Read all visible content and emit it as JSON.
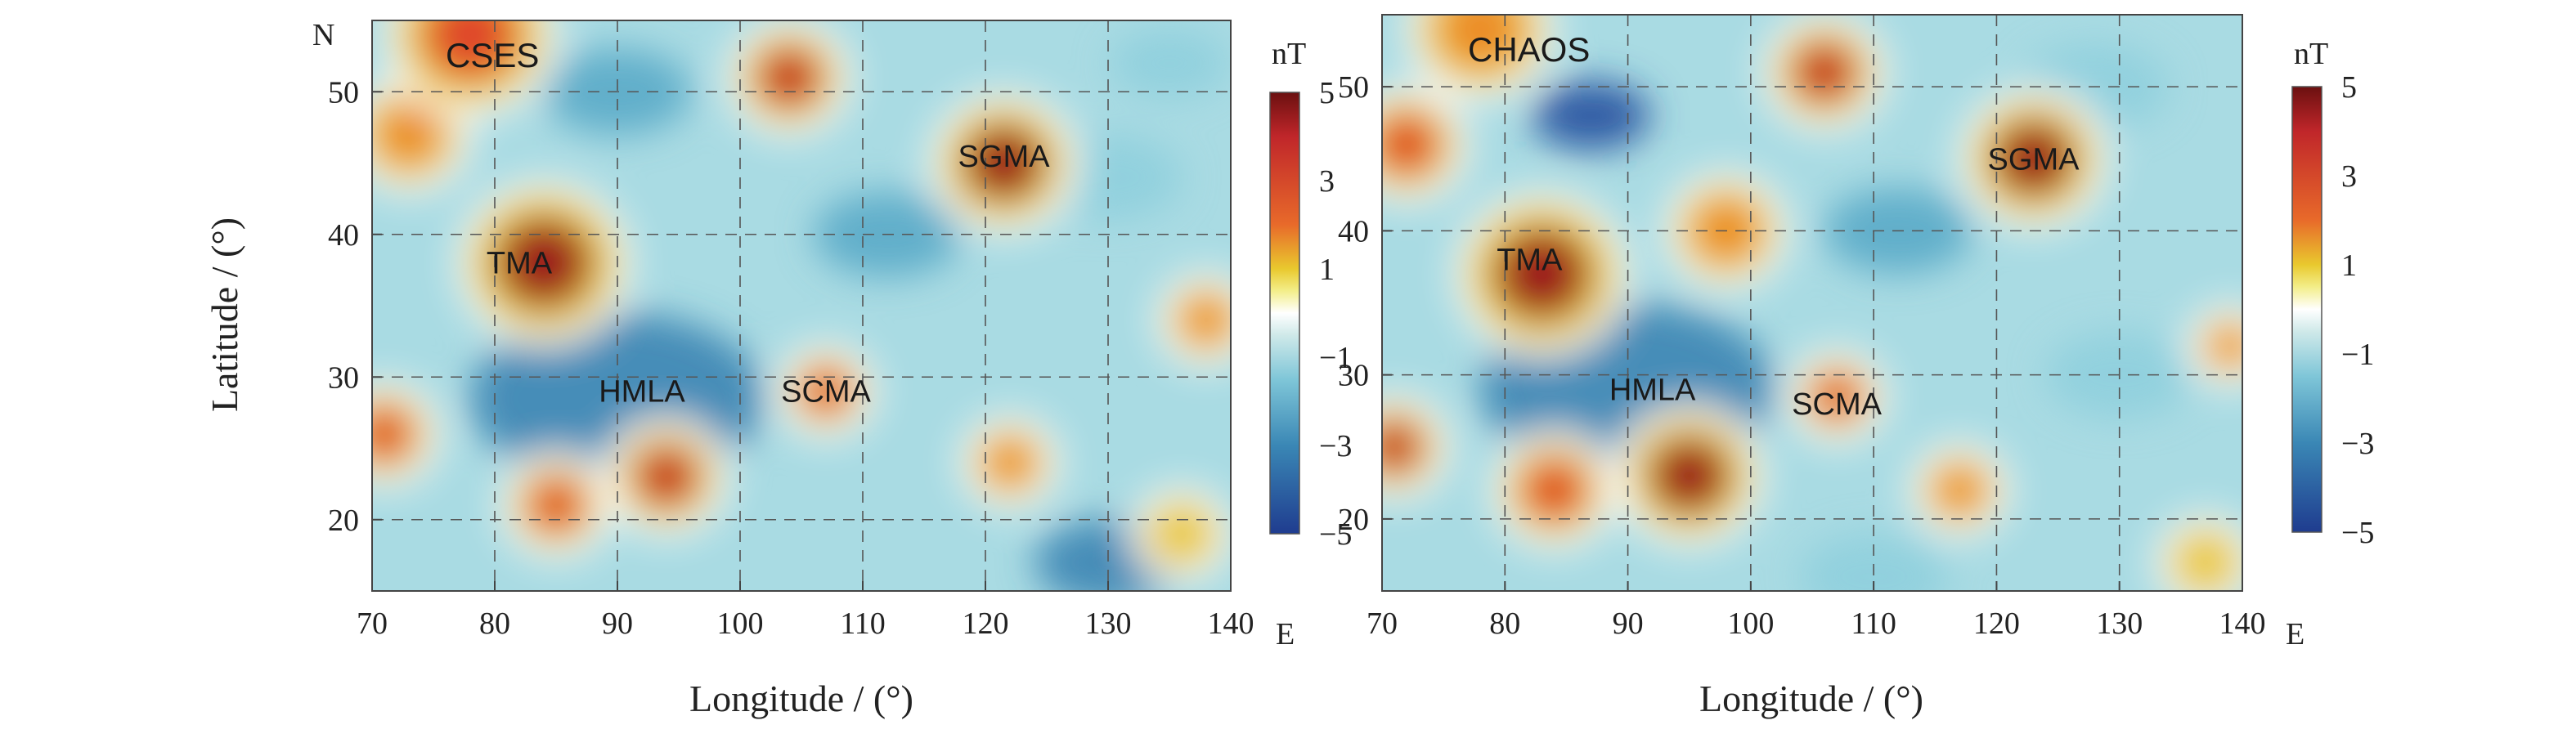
{
  "chart_data": [
    {
      "type": "heatmap",
      "panel_label": "CSES",
      "xlabel": "Longitude / (°)",
      "ylabel": "Latitude / (°)",
      "x_unit_label": "E",
      "y_unit_label": "N",
      "xlim": [
        70,
        140
      ],
      "ylim": [
        15,
        55
      ],
      "xticks": [
        70,
        80,
        90,
        100,
        110,
        120,
        130,
        140
      ],
      "yticks": [
        20,
        30,
        40,
        50
      ],
      "grid": true,
      "colorbar": {
        "unit": "nT",
        "range": [
          -5,
          5
        ],
        "ticks": [
          5,
          3,
          1,
          -1,
          -3,
          -5
        ],
        "tick_labels": [
          "5",
          "3",
          "1",
          "−1",
          "−3",
          "−5"
        ]
      },
      "anomalies": [
        {
          "label": "TMA",
          "lon": 82,
          "lat": 38,
          "value": 4.5
        },
        {
          "label": "SGMA",
          "lon": 121.5,
          "lat": 45.5,
          "value": 5
        },
        {
          "label": "SCMA",
          "lon": 107,
          "lat": 29,
          "value": 3
        },
        {
          "label": "HMLA",
          "lon": 92,
          "lat": 29,
          "value": -3
        }
      ],
      "blobs": [
        {
          "lon": 78,
          "lat": 54,
          "value": 3.5,
          "r": 6
        },
        {
          "lon": 73,
          "lat": 47,
          "value": 2.5,
          "r": 4
        },
        {
          "lon": 104,
          "lat": 51,
          "value": 4.5,
          "r": 4
        },
        {
          "lon": 121.5,
          "lat": 45,
          "value": 5.5,
          "r": 5
        },
        {
          "lon": 84,
          "lat": 38,
          "value": 5.0,
          "r": 6
        },
        {
          "lon": 107,
          "lat": 29,
          "value": 3.2,
          "r": 3
        },
        {
          "lon": 94,
          "lat": 23,
          "value": 4.5,
          "r": 4
        },
        {
          "lon": 85,
          "lat": 21,
          "value": 3.5,
          "r": 3.5
        },
        {
          "lon": 71,
          "lat": 26,
          "value": 3.0,
          "r": 3.5
        },
        {
          "lon": 122,
          "lat": 24,
          "value": 2.5,
          "r": 3
        },
        {
          "lon": 138,
          "lat": 34,
          "value": 2.5,
          "r": 3
        },
        {
          "lon": 136,
          "lat": 19,
          "value": 1.5,
          "r": 3
        },
        {
          "lon": 90,
          "lat": 28.5,
          "value": -3.5,
          "r": 10
        },
        {
          "lon": 90,
          "lat": 50,
          "value": -2.0,
          "r": 5
        },
        {
          "lon": 130,
          "lat": 17,
          "value": -3.0,
          "r": 5
        },
        {
          "lon": 112,
          "lat": 40,
          "value": -2.5,
          "r": 5
        },
        {
          "lon": 130,
          "lat": 44,
          "value": -1.5,
          "r": 5
        },
        {
          "lon": 135,
          "lat": 52,
          "value": -1.5,
          "r": 4
        }
      ]
    },
    {
      "type": "heatmap",
      "panel_label": "CHAOS",
      "xlabel": "Longitude / (°)",
      "ylabel": "",
      "x_unit_label": "E",
      "y_unit_label": "",
      "xlim": [
        70,
        140
      ],
      "ylim": [
        15,
        55
      ],
      "xticks": [
        70,
        80,
        90,
        100,
        110,
        120,
        130,
        140
      ],
      "yticks": [
        20,
        30,
        40,
        50
      ],
      "grid": true,
      "colorbar": {
        "unit": "nT",
        "range": [
          -5,
          5
        ],
        "ticks": [
          5,
          3,
          1,
          -1,
          -3,
          -5
        ],
        "tick_labels": [
          "5",
          "3",
          "1",
          "−1",
          "−3",
          "−5"
        ]
      },
      "anomalies": [
        {
          "label": "TMA",
          "lon": 82,
          "lat": 38,
          "value": 4.5
        },
        {
          "label": "SGMA",
          "lon": 123,
          "lat": 45,
          "value": 5
        },
        {
          "lon": 107,
          "lat": 28,
          "value": 3,
          "label": "SCMA"
        },
        {
          "label": "HMLA",
          "lon": 92,
          "lat": 29,
          "value": -3
        }
      ],
      "blobs": [
        {
          "lon": 78,
          "lat": 54,
          "value": 2.5,
          "r": 5
        },
        {
          "lon": 72,
          "lat": 46,
          "value": 3.0,
          "r": 4
        },
        {
          "lon": 106,
          "lat": 51,
          "value": 4.5,
          "r": 4
        },
        {
          "lon": 123,
          "lat": 45,
          "value": 5.5,
          "r": 5
        },
        {
          "lon": 83,
          "lat": 37,
          "value": 5.0,
          "r": 6
        },
        {
          "lon": 107,
          "lat": 28.5,
          "value": 3.2,
          "r": 3
        },
        {
          "lon": 95,
          "lat": 23,
          "value": 5.0,
          "r": 5
        },
        {
          "lon": 84,
          "lat": 22,
          "value": 3.0,
          "r": 4
        },
        {
          "lon": 71,
          "lat": 25,
          "value": 4.0,
          "r": 3.5
        },
        {
          "lon": 117,
          "lat": 22,
          "value": 2.0,
          "r": 3
        },
        {
          "lon": 139,
          "lat": 32,
          "value": 2.5,
          "r": 2.5
        },
        {
          "lon": 137,
          "lat": 17,
          "value": 1.5,
          "r": 3
        },
        {
          "lon": 98,
          "lat": 40,
          "value": 2.0,
          "r": 4
        },
        {
          "lon": 90,
          "lat": 29,
          "value": -3.5,
          "r": 10
        },
        {
          "lon": 87,
          "lat": 48,
          "value": -5.0,
          "r": 4
        },
        {
          "lon": 112,
          "lat": 40,
          "value": -2.5,
          "r": 5
        },
        {
          "lon": 128,
          "lat": 50,
          "value": -1.5,
          "r": 5
        },
        {
          "lon": 130,
          "lat": 30,
          "value": -1.8,
          "r": 5
        },
        {
          "lon": 110,
          "lat": 16,
          "value": -1.5,
          "r": 5
        }
      ]
    }
  ]
}
